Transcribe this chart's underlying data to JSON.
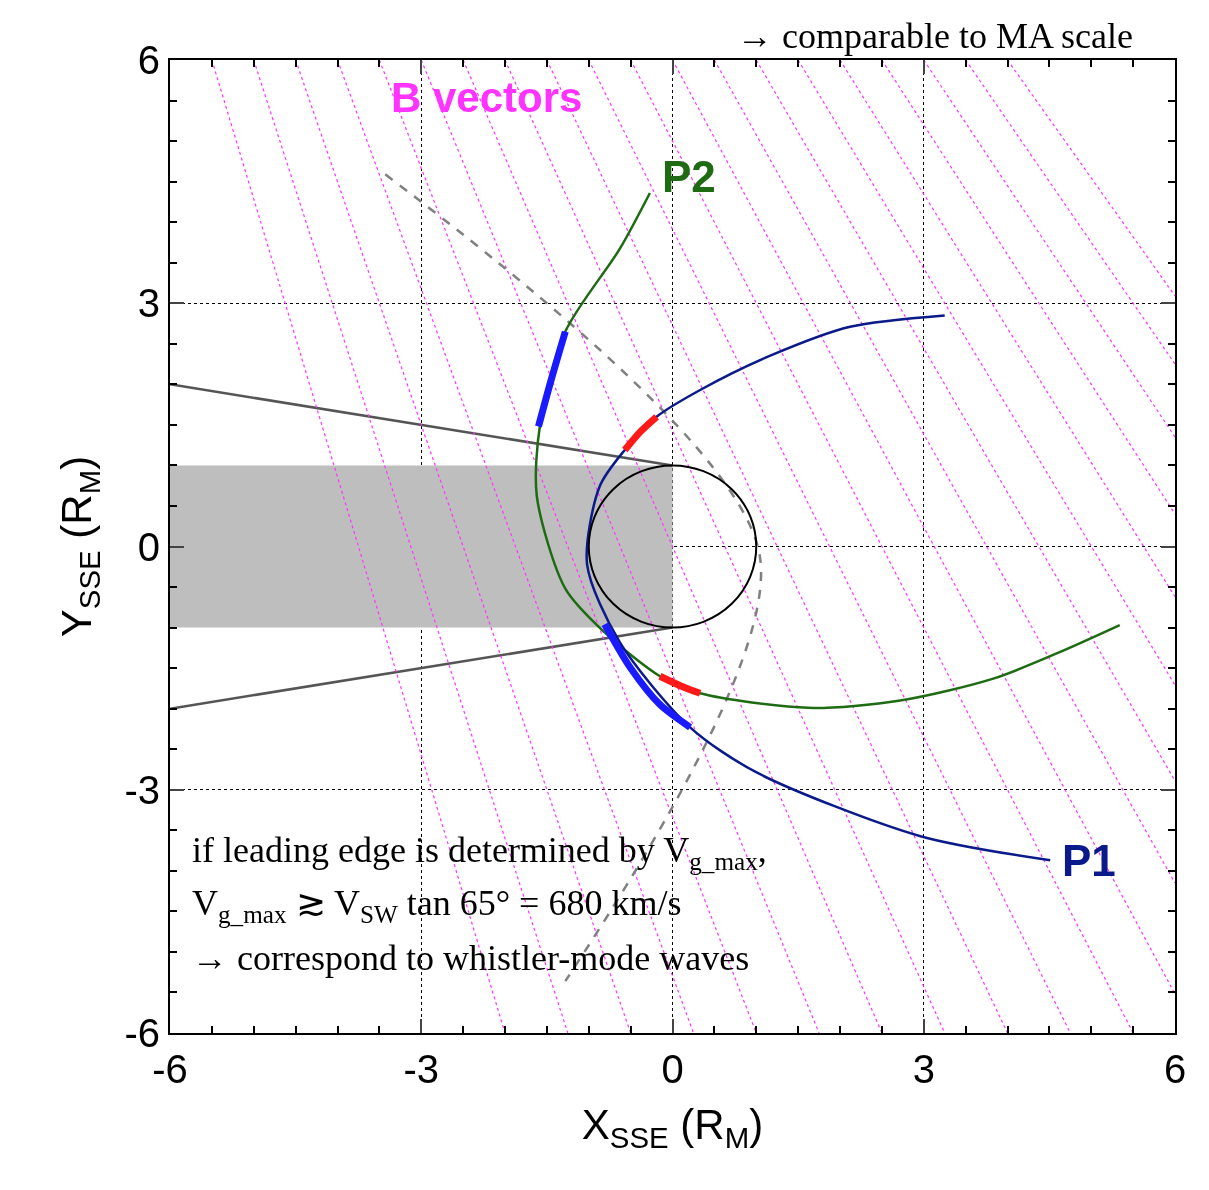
{
  "chart_data": {
    "type": "line",
    "xlabel": "X$_{SSE}$ (R$_{M}$)",
    "ylabel": "Y$_{SSE}$ (R$_{M}$)",
    "xlim": [
      -6,
      6
    ],
    "ylim": [
      -6,
      6
    ],
    "xticks": [
      -6,
      -3,
      0,
      3,
      6
    ],
    "yticks": [
      -6,
      -3,
      0,
      3,
      6
    ],
    "grid": true,
    "legend": false,
    "series": [
      {
        "type": "area",
        "color": "#bebebe",
        "x": [
          -6,
          0,
          0,
          -6,
          -6
        ],
        "values": [
          1,
          1,
          -1,
          -1,
          1
        ]
      },
      {
        "color": "#555555",
        "line_style": "solid",
        "x": [
          -6,
          0
        ],
        "values": [
          2,
          1
        ]
      },
      {
        "color": "#555555",
        "line_style": "solid",
        "x": [
          -6,
          0
        ],
        "values": [
          -2,
          -1
        ]
      },
      {
        "name": "B vectors",
        "color": "#ff33ff",
        "line_style": "dotted",
        "x": [
          -3.5,
          1,
          null,
          -5.5,
          -2,
          null,
          -5,
          -1.25,
          null,
          -4.5,
          -0.5,
          null,
          -4,
          0.25,
          null,
          -3,
          1.75,
          null,
          -2.5,
          2.5,
          null,
          -2,
          3.25,
          null,
          -1.5,
          4,
          null,
          -1,
          4.75,
          null,
          -0.5,
          5.5,
          null,
          0,
          6,
          null,
          0.5,
          6,
          null,
          1,
          6,
          null,
          1.5,
          6,
          null,
          2,
          6,
          null,
          2.5,
          6,
          null,
          3,
          6,
          null,
          3.5,
          6,
          null,
          4,
          6
        ],
        "values": [
          6,
          -6,
          null,
          6,
          -6,
          null,
          6,
          -6,
          null,
          6,
          -6,
          null,
          6,
          -6,
          null,
          6,
          -6,
          null,
          6,
          -6,
          null,
          6,
          -6,
          null,
          6,
          -6,
          null,
          6,
          -6,
          null,
          6,
          -6,
          null,
          6,
          -5.52,
          null,
          6,
          -4.15,
          null,
          6,
          -2.89,
          null,
          6,
          -1.71,
          null,
          6,
          -0.62,
          null,
          6,
          0.4,
          null,
          6,
          1.35,
          null,
          6,
          2.25,
          null,
          6,
          3.09
        ]
      },
      {
        "color": "#808080",
        "line_style": "dashed",
        "x": [
          -3.43,
          1.04,
          -1.28
        ],
        "values": [
          4.59,
          -0.1,
          -5.36
        ]
      },
      {
        "name": "P2",
        "color": "#1e6b14",
        "line_style": "solid",
        "x": [
          -0.27,
          -0.63,
          -1.28,
          -1.58,
          -1.62,
          -1.28,
          -0.81,
          -0.15,
          0.33,
          1.62,
          2.72,
          3.83,
          4.63,
          5.34
        ],
        "values": [
          4.36,
          3.67,
          2.65,
          1.51,
          0.62,
          -0.52,
          -1.06,
          -1.6,
          -1.81,
          -1.99,
          -1.9,
          -1.63,
          -1.3,
          -0.97
        ]
      },
      {
        "name": "P1",
        "color": "#0a1a8a",
        "line_style": "solid",
        "x": [
          4.51,
          2.95,
          1.01,
          0.21,
          -0.63,
          -1.02,
          -0.87,
          -0.57,
          -0.19,
          0.33,
          1.16,
          2.12,
          3.25
        ],
        "values": [
          -3.87,
          -3.57,
          -2.79,
          -2.23,
          -1.18,
          -0.22,
          0.74,
          1.19,
          1.6,
          1.93,
          2.35,
          2.71,
          2.85
        ]
      },
      {
        "color": "#1a1aff",
        "x": [
          -1.28,
          -1.45,
          -1.6
        ],
        "values": [
          2.65,
          2.05,
          1.48
        ]
      },
      {
        "color": "#1a1aff",
        "x": [
          -0.81,
          -0.5,
          -0.15,
          0.21
        ],
        "values": [
          -0.96,
          -1.5,
          -1.95,
          -2.23
        ]
      },
      {
        "color": "#ff1a1a",
        "x": [
          -0.57,
          -0.38,
          -0.19
        ],
        "values": [
          1.19,
          1.42,
          1.6
        ]
      },
      {
        "color": "#ff1a1a",
        "x": [
          -0.15,
          0.1,
          0.33
        ],
        "values": [
          -1.6,
          -1.72,
          -1.81
        ]
      }
    ],
    "annotations": [
      "→ comparable to MA scale",
      "if leading edge is determined by V$_{g_max}$,",
      "V$_{g_max}$ ≳ V$_{SW}$ tan 65° = 680 km/s",
      "→ correspond to whistler-mode waves"
    ]
  }
}
